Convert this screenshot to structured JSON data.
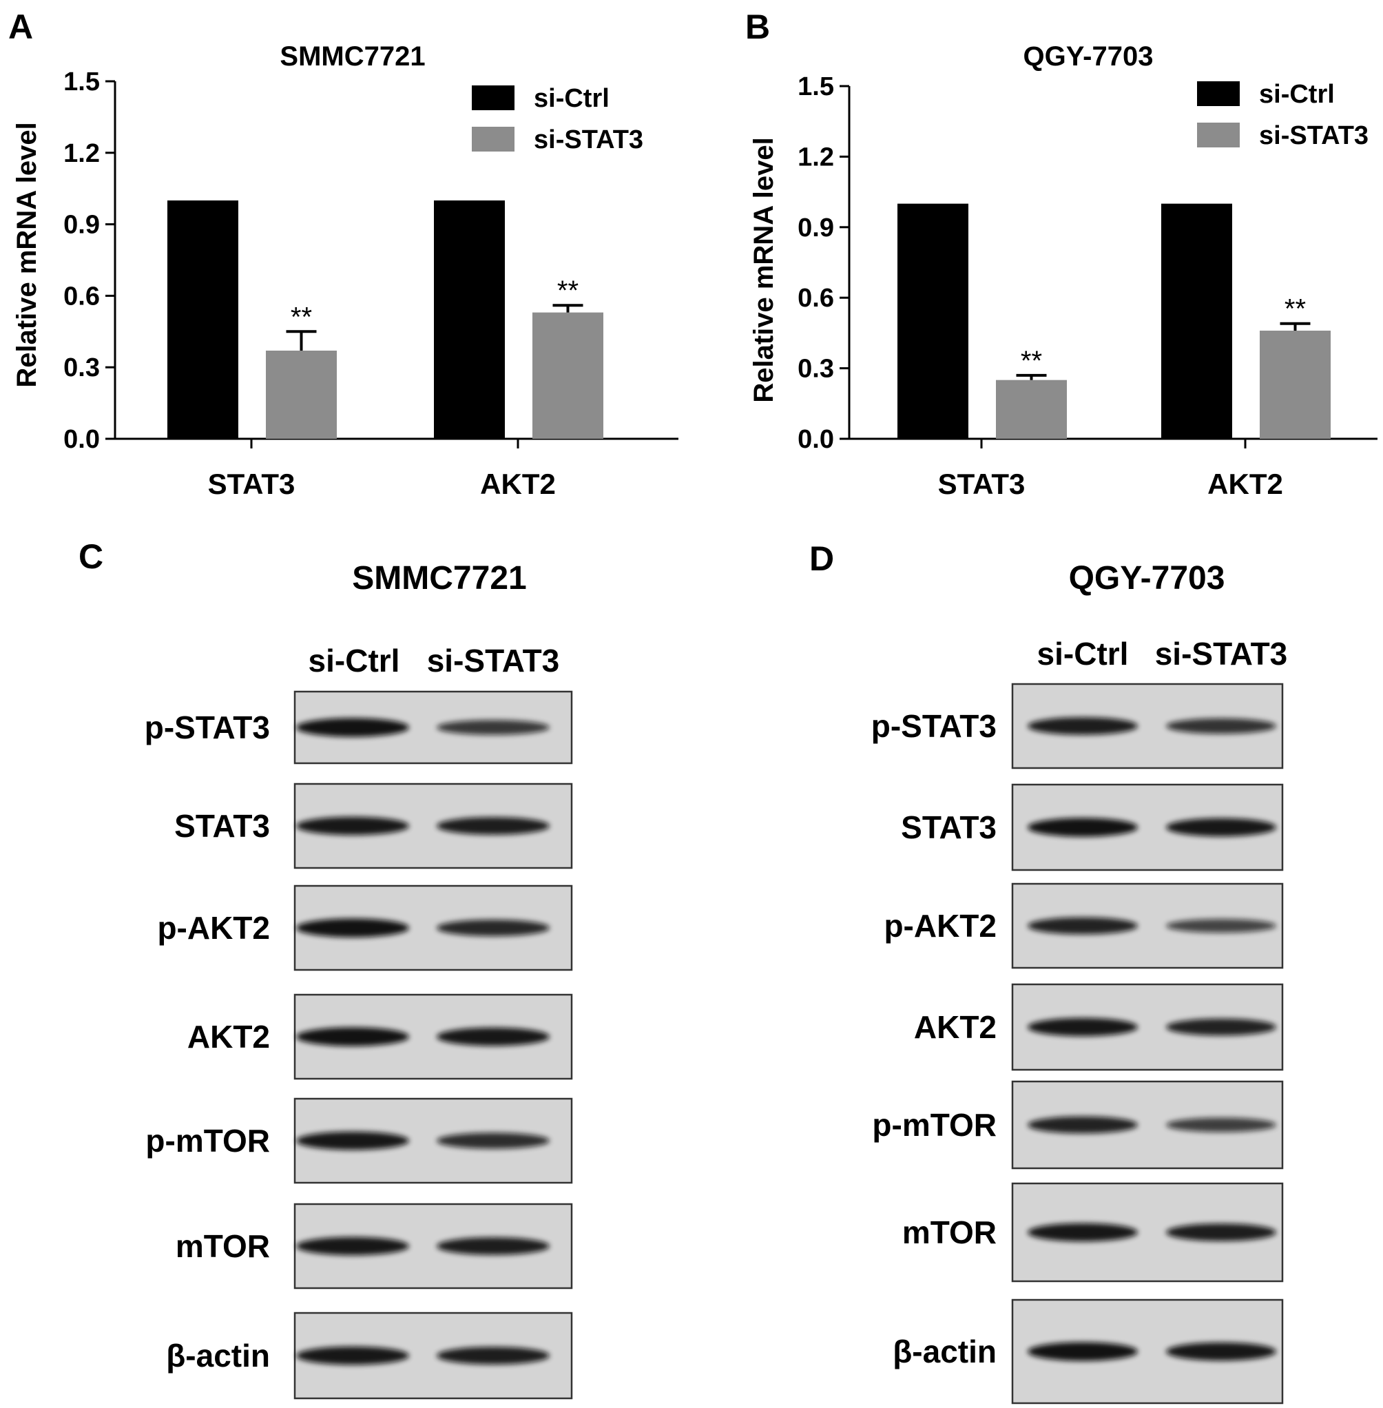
{
  "panels": {
    "A": {
      "letter": "A"
    },
    "B": {
      "letter": "B"
    },
    "C": {
      "letter": "C",
      "title": "SMMC7721"
    },
    "D": {
      "letter": "D",
      "title": "QGY-7703"
    }
  },
  "chart_data": [
    {
      "type": "bar",
      "title": "SMMC7721",
      "xlabel": "",
      "ylabel": "Relative mRNA level",
      "ylim": [
        0,
        1.5
      ],
      "yticks": [
        "0.0",
        "0.3",
        "0.6",
        "0.9",
        "1.2",
        "1.5"
      ],
      "categories": [
        "STAT3",
        "AKT2"
      ],
      "series": [
        {
          "name": "si-Ctrl",
          "values": [
            1.0,
            1.0
          ],
          "errors": [
            0,
            0
          ],
          "color": "#000000"
        },
        {
          "name": "si-STAT3",
          "values": [
            0.37,
            0.53
          ],
          "errors": [
            0.08,
            0.03
          ],
          "color": "#8c8c8c"
        }
      ],
      "annotations": [
        "**",
        "**"
      ],
      "legend": "top-right"
    },
    {
      "type": "bar",
      "title": "QGY-7703",
      "xlabel": "",
      "ylabel": "Relative mRNA level",
      "ylim": [
        0,
        1.5
      ],
      "yticks": [
        "0.0",
        "0.3",
        "0.6",
        "0.9",
        "1.2",
        "1.5"
      ],
      "categories": [
        "STAT3",
        "AKT2"
      ],
      "series": [
        {
          "name": "si-Ctrl",
          "values": [
            1.0,
            1.0
          ],
          "errors": [
            0,
            0
          ],
          "color": "#000000"
        },
        {
          "name": "si-STAT3",
          "values": [
            0.25,
            0.46
          ],
          "errors": [
            0.02,
            0.03
          ],
          "color": "#8c8c8c"
        }
      ],
      "annotations": [
        "**",
        "**"
      ],
      "legend": "top-right"
    }
  ],
  "blots": [
    {
      "lanes": [
        "si-Ctrl",
        "si-STAT3"
      ],
      "rows": [
        {
          "label": "p-STAT3",
          "band": [
            0.95,
            0.6
          ]
        },
        {
          "label": "STAT3",
          "band": [
            0.9,
            0.85
          ]
        },
        {
          "label": "p-AKT2",
          "band": [
            0.95,
            0.75
          ]
        },
        {
          "label": "AKT2",
          "band": [
            0.95,
            0.9
          ]
        },
        {
          "label": "p-mTOR",
          "band": [
            0.9,
            0.7
          ]
        },
        {
          "label": "mTOR",
          "band": [
            0.9,
            0.85
          ]
        },
        {
          "label": "β-actin",
          "band": [
            0.9,
            0.85
          ]
        }
      ]
    },
    {
      "lanes": [
        "si-Ctrl",
        "si-STAT3"
      ],
      "rows": [
        {
          "label": "p-STAT3",
          "band": [
            0.85,
            0.65
          ]
        },
        {
          "label": "STAT3",
          "band": [
            0.95,
            0.9
          ]
        },
        {
          "label": "p-AKT2",
          "band": [
            0.8,
            0.5
          ]
        },
        {
          "label": "AKT2",
          "band": [
            0.9,
            0.8
          ]
        },
        {
          "label": "p-mTOR",
          "band": [
            0.8,
            0.55
          ]
        },
        {
          "label": "mTOR",
          "band": [
            0.9,
            0.85
          ]
        },
        {
          "label": "β-actin",
          "band": [
            0.95,
            0.9
          ]
        }
      ]
    }
  ]
}
